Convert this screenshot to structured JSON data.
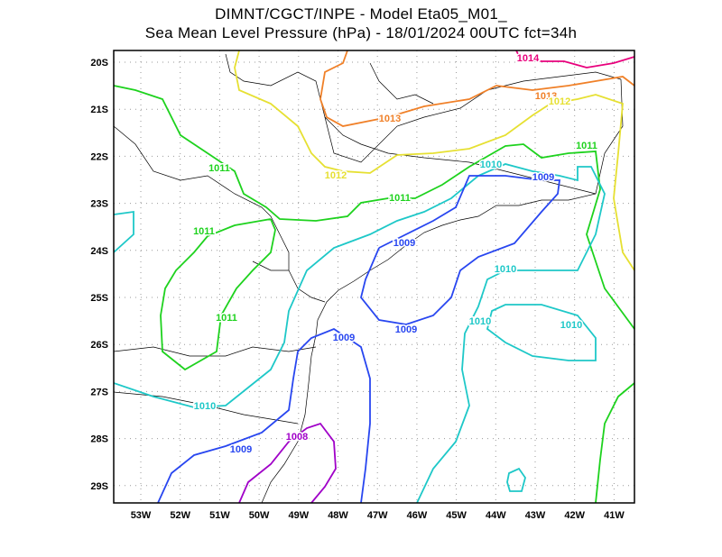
{
  "title_line1": "DIMNT/CGCT/INPE -  Model Eta05_M01_",
  "title_line2": "Sea Mean Level Pressure (hPa) - 18/01/2024 00UTC fct=34h",
  "lat_ticks": [
    "20S",
    "21S",
    "22S",
    "23S",
    "24S",
    "25S",
    "26S",
    "27S",
    "28S",
    "29S"
  ],
  "lon_ticks": [
    "53W",
    "52W",
    "51W",
    "50W",
    "49W",
    "48W",
    "47W",
    "46W",
    "45W",
    "44W",
    "43W",
    "42W",
    "41W"
  ],
  "colors": {
    "1014": "#e8007c",
    "1013": "#f08028",
    "1012": "#e6e032",
    "1011": "#1ed21e",
    "1010": "#1ec8c8",
    "1009": "#2846f0",
    "1008": "#a000c8"
  },
  "contour_labels": [
    {
      "text": "1014",
      "color": "#e8007c"
    },
    {
      "text": "1013",
      "color": "#f08028"
    },
    {
      "text": "1013",
      "color": "#f08028"
    },
    {
      "text": "1012",
      "color": "#e6e032"
    },
    {
      "text": "1012",
      "color": "#e6e032"
    },
    {
      "text": "1011",
      "color": "#1ed21e"
    },
    {
      "text": "1011",
      "color": "#1ed21e"
    },
    {
      "text": "1011",
      "color": "#1ed21e"
    },
    {
      "text": "1011",
      "color": "#1ed21e"
    },
    {
      "text": "1011",
      "color": "#1ed21e"
    },
    {
      "text": "1010",
      "color": "#1ec8c8"
    },
    {
      "text": "1010",
      "color": "#1ec8c8"
    },
    {
      "text": "1010",
      "color": "#1ec8c8"
    },
    {
      "text": "1010",
      "color": "#1ec8c8"
    },
    {
      "text": "1010",
      "color": "#1ec8c8"
    },
    {
      "text": "1009",
      "color": "#2846f0"
    },
    {
      "text": "1009",
      "color": "#2846f0"
    },
    {
      "text": "1009",
      "color": "#2846f0"
    },
    {
      "text": "1009",
      "color": "#2846f0"
    },
    {
      "text": "1009",
      "color": "#2846f0"
    },
    {
      "text": "1008",
      "color": "#a000c8"
    }
  ]
}
